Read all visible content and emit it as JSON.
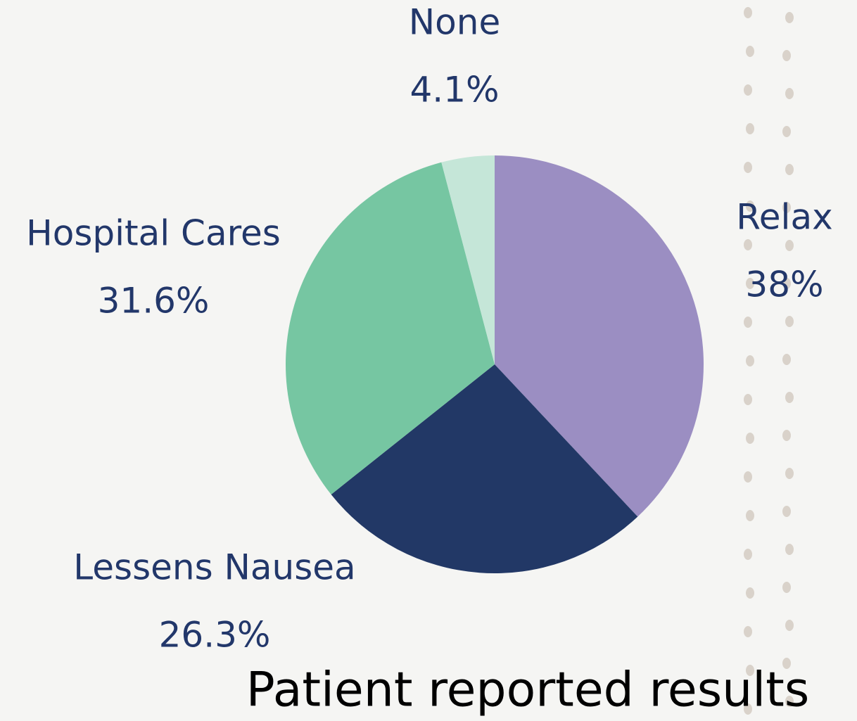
{
  "chart_data": {
    "type": "pie",
    "title": "Patient reported results",
    "categories": [
      "Relax",
      "Lessens Nausea",
      "Hospital Cares",
      "None"
    ],
    "values": [
      38,
      26.3,
      31.6,
      4.1
    ],
    "value_labels": [
      "38%",
      "26.3%",
      "31.6%",
      "4.1%"
    ],
    "colors": [
      "#9b8ec2",
      "#223866",
      "#76c6a2",
      "#c5e6d8"
    ]
  }
}
